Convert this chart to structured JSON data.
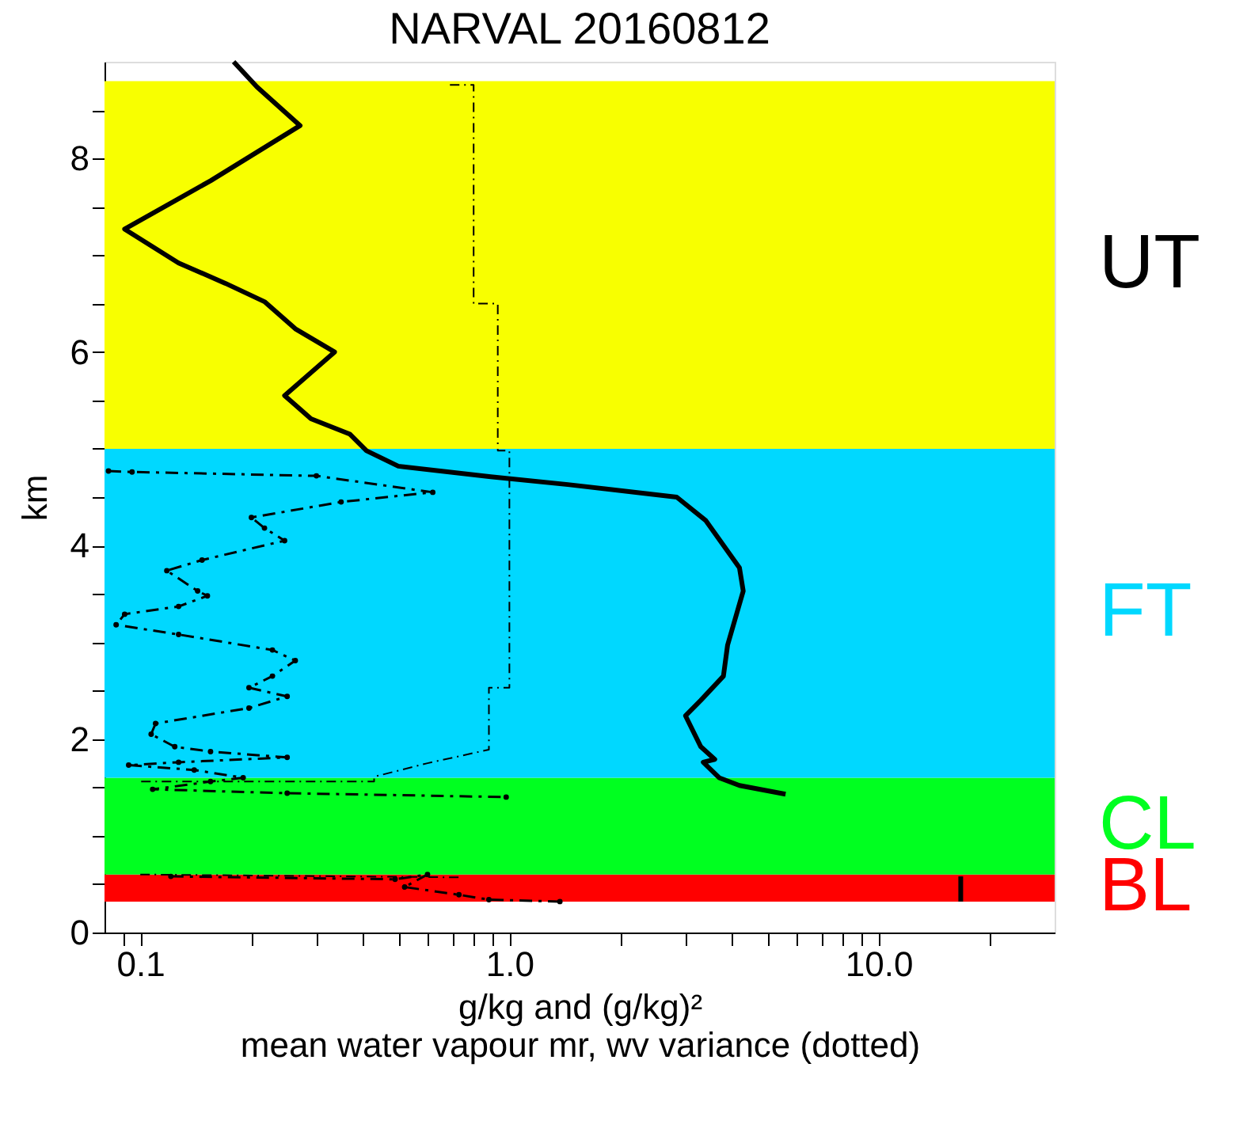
{
  "chart_data": {
    "type": "line",
    "title": "NARVAL 20160812",
    "xlabel": "g/kg and (g/kg)²",
    "ylabel": "km",
    "annotations": [
      "mean water vapour mr, wv variance (dotted)"
    ],
    "log": "x",
    "grid": false,
    "xlim": [
      0.08,
      30
    ],
    "ylim": [
      0,
      9
    ],
    "xticks": [
      {
        "value": 0.09,
        "label": null
      },
      0.1,
      {
        "value": 0.2,
        "label": null
      },
      {
        "value": 0.3,
        "label": null
      },
      {
        "value": 0.4,
        "label": null
      },
      {
        "value": 0.5,
        "label": null
      },
      {
        "value": 0.6,
        "label": null
      },
      {
        "value": 0.7,
        "label": null
      },
      {
        "value": 0.8,
        "label": null
      },
      {
        "value": 0.9,
        "label": null
      },
      {
        "value": 1,
        "label": "1.0"
      },
      {
        "value": 2,
        "label": null
      },
      {
        "value": 3,
        "label": null
      },
      {
        "value": 4,
        "label": null
      },
      {
        "value": 5,
        "label": null
      },
      {
        "value": 6,
        "label": null
      },
      {
        "value": 7,
        "label": null
      },
      {
        "value": 8,
        "label": null
      },
      {
        "value": 9,
        "label": null
      },
      {
        "value": 10,
        "label": "10.0"
      },
      {
        "value": 20,
        "label": null
      }
    ],
    "yticks": [
      0,
      {
        "value": 0.5,
        "label": null
      },
      {
        "value": 1,
        "label": null
      },
      {
        "value": 1.5,
        "label": null
      },
      2,
      {
        "value": 2.5,
        "label": null
      },
      {
        "value": 3,
        "label": null
      },
      {
        "value": 3.5,
        "label": null
      },
      4,
      {
        "value": 4.5,
        "label": null
      },
      {
        "value": 5,
        "label": null
      },
      {
        "value": 5.5,
        "label": null
      },
      6,
      {
        "value": 6.5,
        "label": null
      },
      {
        "value": 7,
        "label": null
      },
      {
        "value": 7.5,
        "label": null
      },
      8,
      {
        "value": 8.5,
        "label": null
      }
    ],
    "bands": [
      {
        "axis": "y",
        "from": 0.32,
        "to": 0.6,
        "label": "BL",
        "color": "#ff0000"
      },
      {
        "axis": "y",
        "from": 0.6,
        "to": 1.6,
        "label": "CL",
        "color": "#00ff20"
      },
      {
        "axis": "y",
        "from": 1.6,
        "to": 5.0,
        "label": "FT",
        "color": "#00d8ff"
      },
      {
        "axis": "y",
        "from": 5.0,
        "to": 8.8,
        "label": "UT",
        "color": "#f8ff00"
      }
    ],
    "series": [
      {
        "color": "#000000",
        "line_style": "solid",
        "marker": "none",
        "x": [
          0.179,
          0.207,
          0.271,
          0.155,
          0.0907,
          0.127,
          0.17,
          0.217,
          0.263,
          0.336,
          0.246,
          0.29,
          0.37,
          0.41,
          0.5,
          0.89,
          1.44,
          2.84,
          3.4,
          4.2,
          4.3,
          3.9,
          3.8,
          3.3,
          3.0,
          3.3,
          3.6,
          3.35,
          3.7,
          4.2,
          5.6,
          null,
          16.7,
          16.7
        ],
        "values": [
          9.0,
          8.74,
          8.34,
          7.77,
          7.27,
          6.92,
          6.71,
          6.52,
          6.24,
          6.0,
          5.55,
          5.31,
          5.15,
          4.98,
          4.82,
          4.71,
          4.63,
          4.5,
          4.26,
          3.77,
          3.53,
          2.97,
          2.65,
          2.4,
          2.24,
          1.92,
          1.79,
          1.76,
          1.6,
          1.52,
          1.43,
          null,
          0.58,
          0.32
        ]
      },
      {
        "color": "#000000",
        "line_style": "dashed",
        "marker": "circle",
        "x": [
          0.082,
          0.095,
          0.3,
          0.62,
          0.35,
          0.2,
          0.217,
          0.246,
          0.147,
          0.118,
          0.143,
          0.152,
          0.127,
          0.0907,
          0.086,
          0.127,
          0.228,
          0.263,
          0.228,
          0.197,
          0.25,
          0.197,
          0.11,
          0.107,
          0.124,
          0.155,
          0.25,
          0.127,
          0.093,
          0.14,
          0.19,
          0.155,
          0.108,
          0.25,
          0.98,
          null,
          0.121,
          0.49,
          0.6,
          0.52,
          0.73,
          0.88,
          1.37
        ],
        "values": [
          4.77,
          4.76,
          4.72,
          4.55,
          4.45,
          4.29,
          4.18,
          4.05,
          3.85,
          3.74,
          3.53,
          3.48,
          3.37,
          3.29,
          3.18,
          3.08,
          2.92,
          2.81,
          2.65,
          2.53,
          2.44,
          2.32,
          2.16,
          2.05,
          1.92,
          1.87,
          1.81,
          1.76,
          1.73,
          1.68,
          1.6,
          1.56,
          1.48,
          1.44,
          1.4,
          null,
          0.58,
          0.55,
          0.6,
          0.47,
          0.39,
          0.34,
          0.32
        ]
      },
      {
        "color": "#000000",
        "line_style": "dotted",
        "marker": "none",
        "x": [
          0.69,
          0.8,
          0.8,
          0.93,
          0.93,
          1.0,
          1.0,
          0.88,
          0.88,
          0.6,
          0.43,
          0.43,
          0.1,
          null,
          0.1,
          0.73
        ],
        "values": [
          8.76,
          8.76,
          6.5,
          6.5,
          4.98,
          4.98,
          2.53,
          2.53,
          1.89,
          1.75,
          1.61,
          1.56,
          1.56,
          null,
          0.6,
          0.57
        ]
      }
    ]
  }
}
